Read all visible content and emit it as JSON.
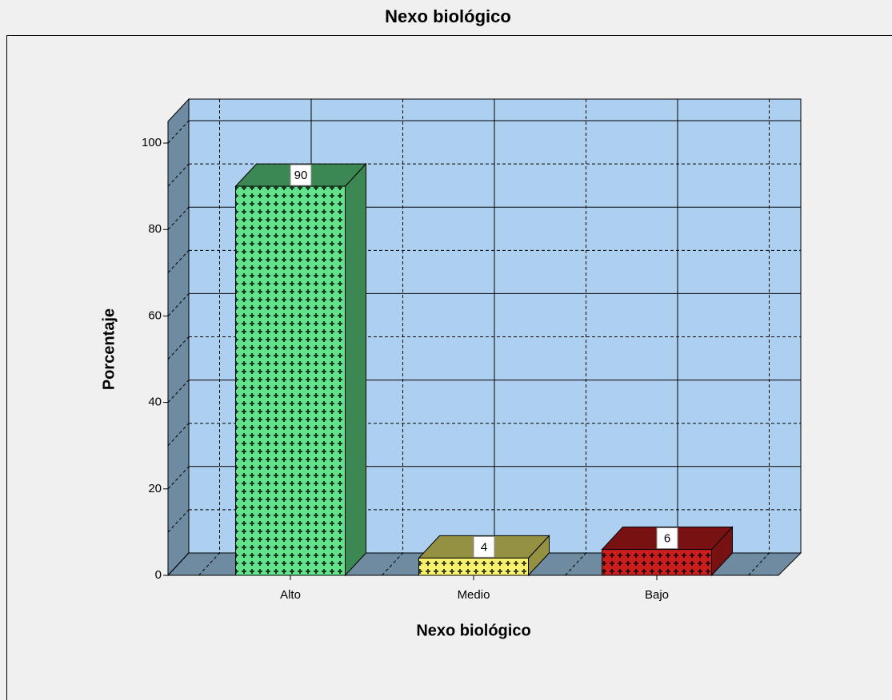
{
  "chart_data": {
    "type": "bar3d",
    "title": "Nexo biológico",
    "x_label": "Nexo biológico",
    "y_label": "Porcentaje",
    "categories": [
      "Alto",
      "Medio",
      "Bajo"
    ],
    "values": [
      90,
      4,
      6
    ],
    "colors": [
      "#62e28a",
      "#f6f26e",
      "#c81e1e"
    ],
    "ylim": [
      0,
      105
    ],
    "yticks": [
      0,
      20,
      40,
      60,
      80,
      100
    ],
    "grid": true
  }
}
